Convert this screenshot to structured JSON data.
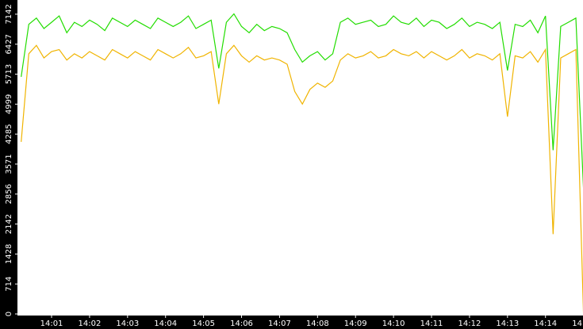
{
  "chart_data": {
    "type": "line",
    "categories": [
      null,
      null,
      null,
      null,
      "14:01",
      null,
      null,
      null,
      null,
      "14:02",
      null,
      null,
      null,
      null,
      "14:03",
      null,
      null,
      null,
      null,
      "14:04",
      null,
      null,
      null,
      null,
      "14:05",
      null,
      null,
      null,
      null,
      "14:06",
      null,
      null,
      null,
      null,
      "14:07",
      null,
      null,
      null,
      null,
      "14:08",
      null,
      null,
      null,
      null,
      "14:09",
      null,
      null,
      null,
      null,
      "14:10",
      null,
      null,
      null,
      null,
      "14:11",
      null,
      null,
      null,
      null,
      "14:12",
      null,
      null,
      null,
      null,
      "14:13",
      null,
      null,
      null,
      null,
      "14:14",
      null,
      null,
      null,
      null,
      "14:15"
    ],
    "series": [
      {
        "color": "#22dd00",
        "values": [
          5650,
          6900,
          7050,
          6800,
          6950,
          7100,
          6700,
          6950,
          6850,
          7000,
          6900,
          6750,
          7050,
          6950,
          6850,
          7000,
          6900,
          6800,
          7050,
          6950,
          6850,
          6950,
          7100,
          6800,
          6900,
          7000,
          5850,
          6950,
          7150,
          6850,
          6700,
          6900,
          6750,
          6850,
          6800,
          6700,
          6300,
          6000,
          6150,
          6250,
          6050,
          6200,
          6950,
          7050,
          6900,
          6950,
          7000,
          6850,
          6900,
          7100,
          6950,
          6900,
          7050,
          6850,
          7000,
          6950,
          6800,
          6900,
          7050,
          6850,
          6950,
          6900,
          6800,
          6950,
          5800,
          6900,
          6850,
          7000,
          6700,
          7100,
          3900,
          6850,
          6950,
          7050,
          3000
        ]
      },
      {
        "color": "#f0b400",
        "values": [
          4100,
          6200,
          6400,
          6100,
          6250,
          6300,
          6050,
          6200,
          6100,
          6250,
          6150,
          6050,
          6300,
          6200,
          6100,
          6250,
          6150,
          6050,
          6300,
          6200,
          6100,
          6200,
          6350,
          6100,
          6150,
          6250,
          5000,
          6200,
          6400,
          6150,
          6000,
          6150,
          6050,
          6100,
          6050,
          5950,
          5300,
          5000,
          5350,
          5500,
          5400,
          5550,
          6050,
          6200,
          6100,
          6150,
          6250,
          6100,
          6150,
          6300,
          6200,
          6150,
          6250,
          6100,
          6250,
          6150,
          6050,
          6150,
          6300,
          6100,
          6200,
          6150,
          6050,
          6200,
          4700,
          6150,
          6100,
          6250,
          6000,
          6300,
          1900,
          6100,
          6200,
          6300,
          0
        ]
      }
    ],
    "ylim": [
      0,
      7480
    ],
    "yticks": [
      0,
      714,
      1428,
      2142,
      2856,
      3571,
      4285,
      4999,
      5713,
      6427,
      7142
    ]
  }
}
